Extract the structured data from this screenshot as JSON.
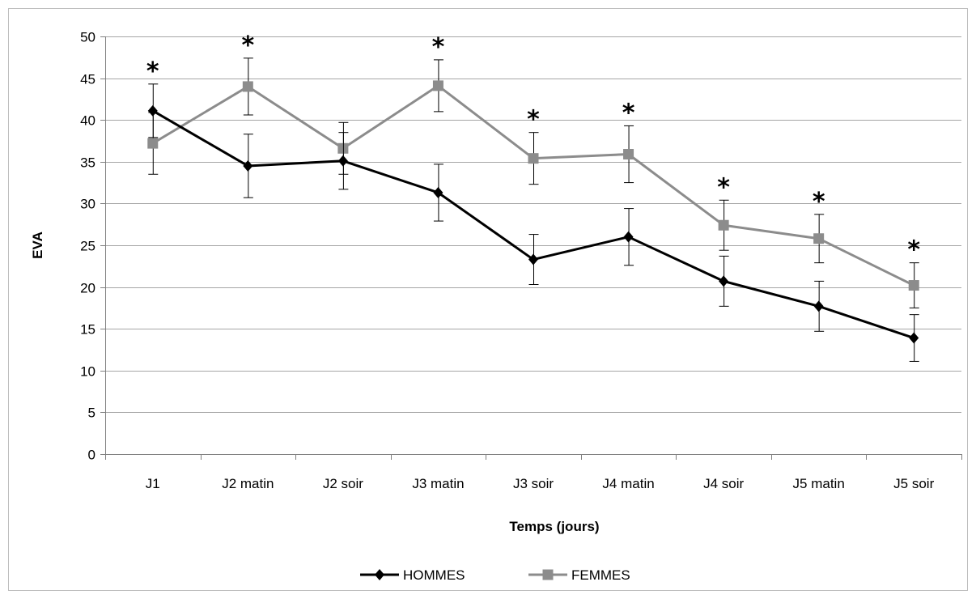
{
  "chart_data": {
    "type": "line",
    "title": "",
    "xlabel": "Temps (jours)",
    "ylabel": "EVA",
    "ylim": [
      0,
      50
    ],
    "yticks": [
      0,
      5,
      10,
      15,
      20,
      25,
      30,
      35,
      40,
      45,
      50
    ],
    "categories": [
      "J1",
      "J2 matin",
      "J2 soir",
      "J3 matin",
      "J3 soir",
      "J4 matin",
      "J4 soir",
      "J5 matin",
      "J5 soir"
    ],
    "series": [
      {
        "name": "HOMMES",
        "color": "#000000",
        "marker": "diamond",
        "values": [
          41.1,
          34.5,
          35.1,
          31.3,
          23.3,
          26.0,
          20.7,
          17.7,
          13.9
        ],
        "error": [
          3.2,
          3.8,
          3.4,
          3.4,
          3.0,
          3.4,
          3.0,
          3.0,
          2.8
        ]
      },
      {
        "name": "FEMMES",
        "color": "#8c8c8c",
        "marker": "square",
        "values": [
          37.2,
          44.0,
          36.6,
          44.1,
          35.4,
          35.9,
          27.4,
          25.8,
          20.2
        ],
        "error": [
          3.7,
          3.4,
          3.1,
          3.1,
          3.1,
          3.4,
          3.0,
          2.9,
          2.7
        ]
      }
    ],
    "significance_marks": [
      "*",
      "*",
      "",
      "*",
      "*",
      "*",
      "*",
      "*",
      "*"
    ],
    "grid": true,
    "legend": "bottom"
  }
}
